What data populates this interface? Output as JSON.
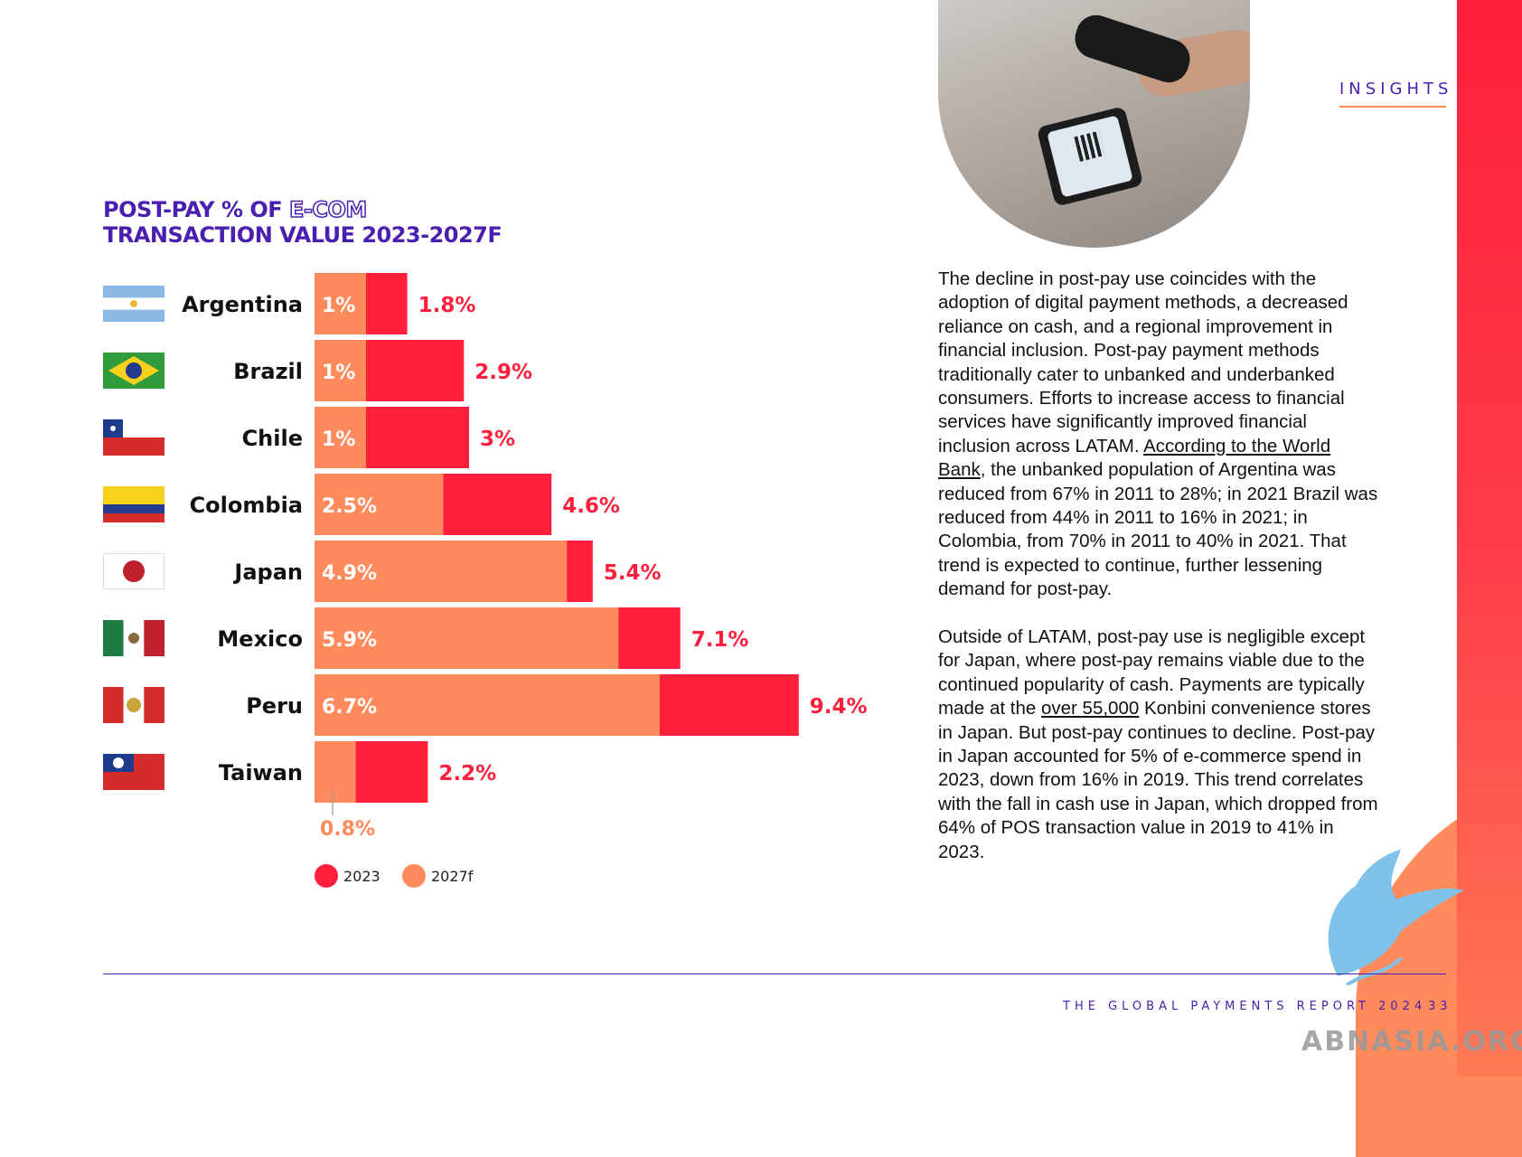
{
  "header": {
    "section": "INSIGHTS"
  },
  "chart_data": {
    "type": "bar",
    "title_line1_a": "POST-PAY % OF ",
    "title_line1_b": "E-COM",
    "title_line2": "TRANSACTION VALUE 2023-2027F",
    "categories": [
      "Argentina",
      "Brazil",
      "Chile",
      "Colombia",
      "Japan",
      "Mexico",
      "Peru",
      "Taiwan"
    ],
    "series": [
      {
        "name": "2023",
        "values": [
          1.8,
          2.9,
          3,
          4.6,
          5.4,
          7.1,
          9.4,
          2.2
        ],
        "labels": [
          "1.8%",
          "2.9%",
          "3%",
          "4.6%",
          "5.4%",
          "7.1%",
          "9.4%",
          "2.2%"
        ],
        "color": "#ff1f3d"
      },
      {
        "name": "2027f",
        "values": [
          1,
          1,
          1,
          2.5,
          4.9,
          5.9,
          6.7,
          0.8
        ],
        "labels": [
          "1%",
          "1%",
          "1%",
          "2.5%",
          "4.9%",
          "5.9%",
          "6.7%",
          "0.8%"
        ],
        "color": "#ff8a5c"
      }
    ],
    "flags": [
      "argentina-flag-icon",
      "brazil-flag-icon",
      "chile-flag-icon",
      "colombia-flag-icon",
      "japan-flag-icon",
      "mexico-flag-icon",
      "peru-flag-icon",
      "taiwan-flag-icon"
    ],
    "legend": [
      "2023",
      "2027f"
    ],
    "legend_placement": "bottom-left"
  },
  "body": {
    "p1_a": "The decline in post-pay use coincides with the adoption of digital payment methods, a decreased reliance on cash, and a regional improvement in financial inclusion. Post-pay payment methods traditionally cater to unbanked and underbanked consumers. Efforts to increase access to financial services have significantly improved financial inclusion across LATAM. ",
    "p1_link": "According to the World Bank",
    "p1_b": ", the unbanked population of Argentina was reduced from 67% in 2011 to 28%; in 2021 Brazil was reduced from 44% in 2011 to 16% in 2021; in Colombia, from 70% in 2011 to 40% in 2021. That trend is expected to continue, further lessening demand for post-pay.",
    "p2_a": "Outside of LATAM, post-pay use is negligible except for Japan, where post-pay remains viable due to the continued popularity of cash. Payments are typically made at the ",
    "p2_link": "over 55,000",
    "p2_b": " Konbini convenience stores in Japan. But post-pay continues to decline. Post-pay in Japan accounted for 5% of e-commerce spend in 2023, down from 16% in 2019. This trend correlates with the fall in cash use in Japan, which dropped from 64% of POS transaction value in 2019 to 41% in 2023."
  },
  "footer": {
    "report": "THE GLOBAL PAYMENTS REPORT 2024",
    "page": "33"
  },
  "watermark": "ABNASIA.ORG"
}
